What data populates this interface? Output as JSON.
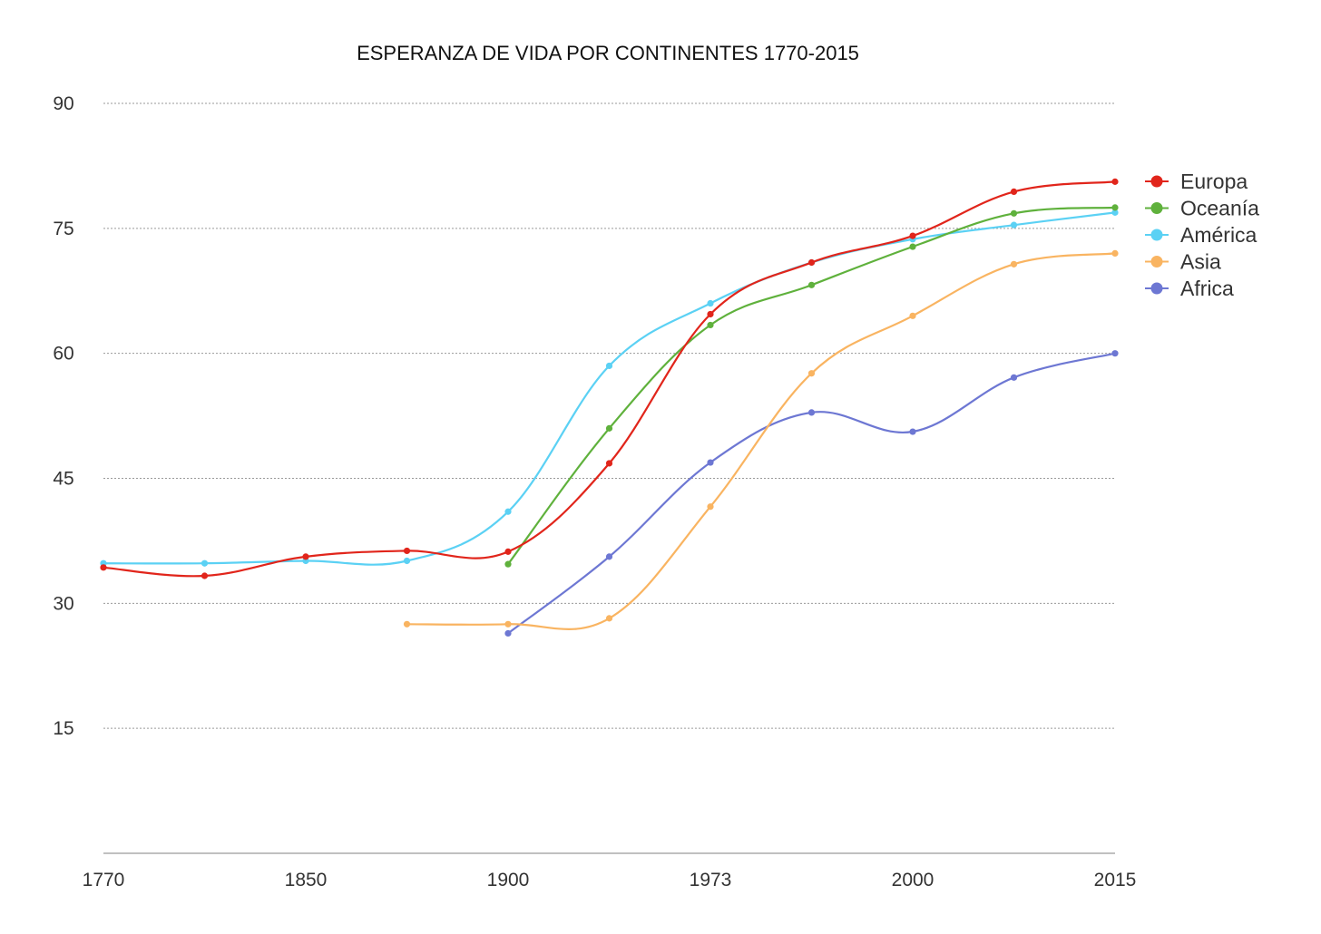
{
  "chart_data": {
    "type": "line",
    "title": "ESPERANZA DE VIDA POR CONTINENTES 1770-2015",
    "xlabel": "",
    "ylabel": "",
    "categories": [
      "1770",
      "",
      "1850",
      "",
      "1900",
      "",
      "1973",
      "",
      "2000",
      "",
      "2015"
    ],
    "x_tick_labels": [
      "1770",
      "1850",
      "1900",
      "1973",
      "2000",
      "2015"
    ],
    "y_ticks": [
      15,
      30,
      45,
      60,
      75,
      90
    ],
    "ylim": [
      0,
      90
    ],
    "grid": true,
    "legend_position": "right",
    "series": [
      {
        "name": "Europa",
        "color": "#e1251b",
        "values": [
          34.3,
          33.3,
          35.6,
          36.3,
          36.2,
          46.8,
          64.7,
          70.9,
          74.1,
          79.4,
          80.6
        ]
      },
      {
        "name": "Oceanía",
        "color": "#5fb13c",
        "values": [
          null,
          null,
          null,
          null,
          34.7,
          51.0,
          63.4,
          68.2,
          72.8,
          76.8,
          77.5
        ]
      },
      {
        "name": "América",
        "color": "#5bd1f4",
        "values": [
          34.8,
          34.8,
          35.1,
          35.1,
          41.0,
          58.5,
          66.0,
          70.9,
          73.7,
          75.4,
          76.9
        ]
      },
      {
        "name": "Asia",
        "color": "#f9b461",
        "values": [
          null,
          null,
          null,
          27.5,
          27.5,
          28.2,
          41.6,
          57.6,
          64.5,
          70.7,
          72.0
        ]
      },
      {
        "name": "Africa",
        "color": "#6d77d3",
        "values": [
          null,
          null,
          null,
          null,
          26.4,
          35.6,
          46.9,
          52.9,
          50.6,
          57.1,
          60.0
        ]
      }
    ]
  }
}
